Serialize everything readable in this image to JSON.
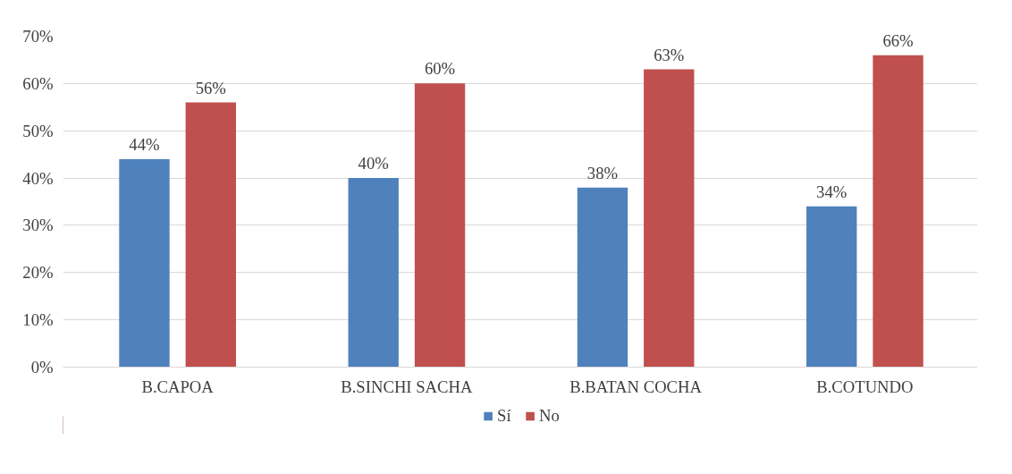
{
  "chart_data": {
    "type": "bar",
    "categories": [
      "B.CAPOA",
      "B.SINCHI SACHA",
      "B.BATAN COCHA",
      "B.COTUNDO"
    ],
    "series": [
      {
        "name": "Sí",
        "color": "#4f81bd",
        "values": [
          44,
          40,
          38,
          34
        ],
        "value_labels": [
          "44%",
          "40%",
          "38%",
          "34%"
        ]
      },
      {
        "name": "No",
        "color": "#c0504d",
        "values": [
          56,
          60,
          63,
          66
        ],
        "value_labels": [
          "56%",
          "60%",
          "63%",
          "66%"
        ]
      }
    ],
    "ylim": [
      0,
      70
    ],
    "yticks": [
      {
        "value": 0,
        "label": "0%"
      },
      {
        "value": 10,
        "label": "10%"
      },
      {
        "value": 20,
        "label": "20%"
      },
      {
        "value": 30,
        "label": "30%"
      },
      {
        "value": 40,
        "label": "40%"
      },
      {
        "value": 50,
        "label": "50%"
      },
      {
        "value": 60,
        "label": "60%"
      },
      {
        "value": 70,
        "label": "70%"
      }
    ],
    "grid": "y",
    "legend": "bottom"
  }
}
